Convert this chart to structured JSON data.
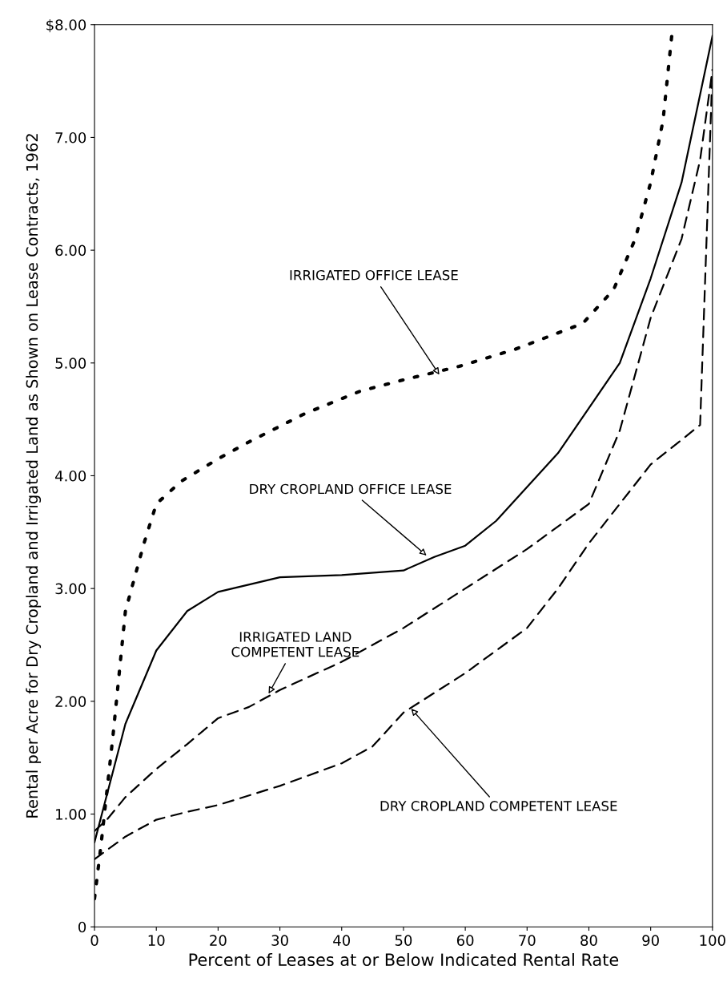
{
  "chart_data": {
    "type": "line",
    "xlabel": "Percent of Leases at or Below Indicated Rental Rate",
    "ylabel": "Rental per Acre for Dry Cropland and Irrigated Land as Shown on Lease Contracts, 1962",
    "xlim": [
      0,
      100
    ],
    "ylim": [
      0,
      8
    ],
    "xticks": [
      0,
      10,
      20,
      30,
      40,
      50,
      60,
      70,
      80,
      90,
      100
    ],
    "yticks": [
      {
        "value": 0,
        "label": "0"
      },
      {
        "value": 1,
        "label": "1.00"
      },
      {
        "value": 2,
        "label": "2.00"
      },
      {
        "value": 3,
        "label": "3.00"
      },
      {
        "value": 4,
        "label": "4.00"
      },
      {
        "value": 5,
        "label": "5.00"
      },
      {
        "value": 6,
        "label": "6.00"
      },
      {
        "value": 7,
        "label": "7.00"
      },
      {
        "value": 8,
        "label": "$8.00"
      }
    ],
    "grid": false,
    "legend": false,
    "series": [
      {
        "color": "#000000",
        "line_style": "dotted",
        "x": [
          0,
          1,
          3,
          5,
          8,
          10,
          14,
          20,
          25,
          34,
          43,
          50,
          59,
          68,
          79,
          84,
          87.5,
          90,
          92,
          93.5
        ],
        "values": [
          0.25,
          0.7,
          1.7,
          2.8,
          3.4,
          3.75,
          3.95,
          4.15,
          4.3,
          4.55,
          4.75,
          4.85,
          4.97,
          5.12,
          5.35,
          5.65,
          6.1,
          6.6,
          7.15,
          7.95
        ]
      },
      {
        "color": "#000000",
        "line_style": "solid",
        "x": [
          0,
          5,
          10,
          15,
          20,
          30,
          40,
          50,
          55,
          60,
          65,
          70,
          75,
          80,
          85,
          90,
          95,
          100
        ],
        "values": [
          0.75,
          1.8,
          2.45,
          2.8,
          2.97,
          3.1,
          3.12,
          3.16,
          3.28,
          3.38,
          3.6,
          3.9,
          4.2,
          4.6,
          5.0,
          5.75,
          6.6,
          7.9
        ]
      },
      {
        "color": "#000000",
        "line_style": "dashed",
        "x": [
          0,
          2,
          5,
          10,
          15,
          20,
          25,
          30,
          40,
          50,
          60,
          70,
          80,
          85,
          90,
          95,
          98,
          100
        ],
        "values": [
          0.85,
          0.95,
          1.15,
          1.4,
          1.62,
          1.85,
          1.95,
          2.1,
          2.35,
          2.65,
          3.0,
          3.35,
          3.75,
          4.4,
          5.4,
          6.1,
          6.8,
          7.6
        ]
      },
      {
        "color": "#000000",
        "line_style": "dashed",
        "x": [
          0,
          5,
          10,
          15,
          20,
          30,
          40,
          45,
          50,
          60,
          70,
          75,
          80,
          90,
          98,
          100
        ],
        "values": [
          0.6,
          0.8,
          0.95,
          1.02,
          1.08,
          1.25,
          1.45,
          1.6,
          1.9,
          2.25,
          2.65,
          3.0,
          3.4,
          4.1,
          4.45,
          7.6
        ]
      }
    ],
    "annotations": [
      {
        "text": "IRRIGATED OFFICE LEASE",
        "x": 56,
        "y": 4.88
      },
      {
        "text": "DRY CROPLAND OFFICE LEASE",
        "x": 54,
        "y": 3.28
      },
      {
        "text": "IRRIGATED LAND\nCOMPETENT LEASE",
        "x": 28,
        "y": 2.05
      },
      {
        "text": "DRY CROPLAND COMPETENT LEASE",
        "x": 51,
        "y": 1.95
      }
    ]
  }
}
